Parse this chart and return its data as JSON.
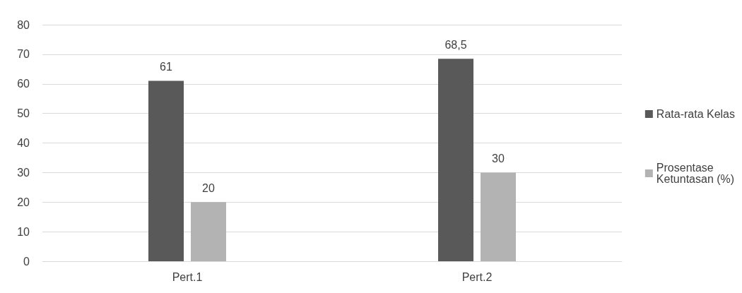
{
  "chart_data": {
    "type": "bar",
    "categories": [
      "Pert.1",
      "Pert.2"
    ],
    "series": [
      {
        "name": "Rata-rata Kelas",
        "color": "#595959",
        "values": [
          61,
          68.5
        ],
        "value_labels": [
          "61",
          "68,5"
        ]
      },
      {
        "name": "Prosentase Ketuntasan (%)",
        "color": "#b3b3b3",
        "values": [
          20,
          30
        ],
        "value_labels": [
          "20",
          "30"
        ]
      }
    ],
    "ylim": [
      0,
      80
    ],
    "yticks": [
      0,
      10,
      20,
      30,
      40,
      50,
      60,
      70,
      80
    ],
    "grid": "y",
    "legend": "right"
  }
}
